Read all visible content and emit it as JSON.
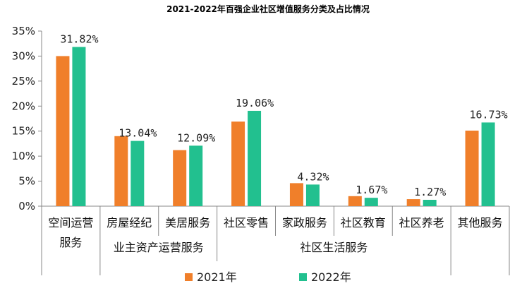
{
  "chart_data": {
    "type": "bar",
    "title": "2021-2022年百强企业社区增值服务分类及占比情况",
    "categories": [
      "空间运营服务",
      "房屋经纪",
      "美居服务",
      "社区零售",
      "家政服务",
      "社区教育",
      "社区养老",
      "其他服务"
    ],
    "category_display": [
      [
        "空间运营",
        "服务"
      ],
      [
        "房屋经纪"
      ],
      [
        "美居服务"
      ],
      [
        "社区零售"
      ],
      [
        "家政服务"
      ],
      [
        "社区教育"
      ],
      [
        "社区养老"
      ],
      [
        "其他服务"
      ]
    ],
    "groups": [
      {
        "label": "业主资产运营服务",
        "from": 1,
        "to": 2
      },
      {
        "label": "社区生活服务",
        "from": 3,
        "to": 6
      }
    ],
    "series": [
      {
        "name": "2021年",
        "color": "#F07F2A",
        "values": [
          30.0,
          14.0,
          11.2,
          16.9,
          4.6,
          2.0,
          1.4,
          15.1
        ]
      },
      {
        "name": "2022年",
        "color": "#22C08F",
        "values": [
          31.82,
          13.04,
          12.09,
          19.06,
          4.32,
          1.67,
          1.27,
          16.73
        ]
      }
    ],
    "data_labels": [
      "31.82%",
      "13.04%",
      "12.09%",
      "19.06%",
      "4.32%",
      "1.67%",
      "1.27%",
      "16.73%"
    ],
    "y_ticks": [
      "0%",
      "5%",
      "10%",
      "15%",
      "20%",
      "25%",
      "30%",
      "35%"
    ],
    "ylim": [
      0,
      35
    ],
    "grid": false,
    "legend_position": "bottom"
  }
}
